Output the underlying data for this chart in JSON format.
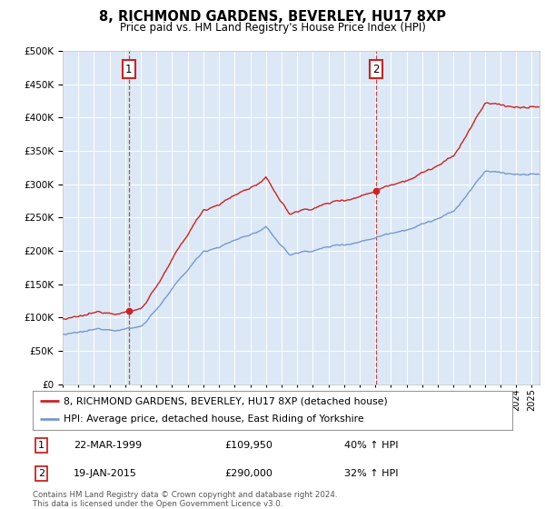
{
  "title": "8, RICHMOND GARDENS, BEVERLEY, HU17 8XP",
  "subtitle": "Price paid vs. HM Land Registry's House Price Index (HPI)",
  "legend_line1": "8, RICHMOND GARDENS, BEVERLEY, HU17 8XP (detached house)",
  "legend_line2": "HPI: Average price, detached house, East Riding of Yorkshire",
  "annotation1_date": "22-MAR-1999",
  "annotation1_price": "£109,950",
  "annotation1_hpi": "40% ↑ HPI",
  "annotation1_year": 1999.22,
  "annotation1_value": 109950,
  "annotation2_date": "19-JAN-2015",
  "annotation2_price": "£290,000",
  "annotation2_hpi": "32% ↑ HPI",
  "annotation2_year": 2015.05,
  "annotation2_value": 290000,
  "footer": "Contains HM Land Registry data © Crown copyright and database right 2024.\nThis data is licensed under the Open Government Licence v3.0.",
  "red_color": "#cc2222",
  "blue_color": "#7799cc",
  "plot_bg_color": "#dce8f5",
  "ylim": [
    0,
    500000
  ],
  "xlim_start": 1995.0,
  "xlim_end": 2025.5
}
